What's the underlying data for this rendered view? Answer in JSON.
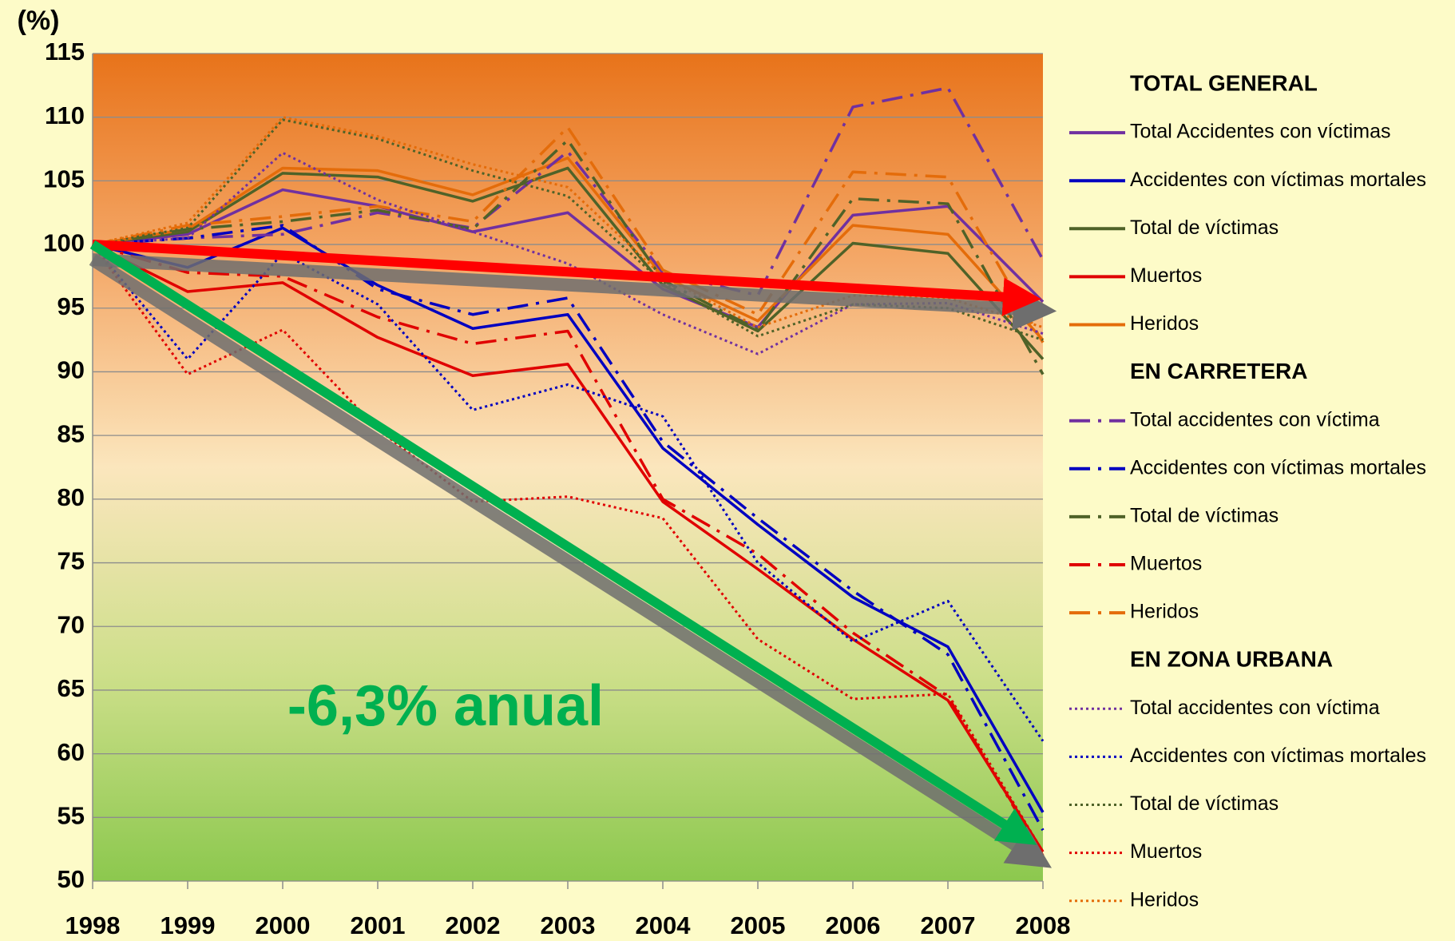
{
  "chart_data": {
    "type": "line",
    "y_label": "(%)",
    "annotation": "-6,3% anual",
    "x": [
      1998,
      1999,
      2000,
      2001,
      2002,
      2003,
      2004,
      2005,
      2006,
      2007,
      2008
    ],
    "xlim": [
      1998,
      2008
    ],
    "xticks": [
      1998,
      1999,
      2000,
      2001,
      2002,
      2003,
      2004,
      2005,
      2006,
      2007,
      2008
    ],
    "ylim": [
      50,
      115
    ],
    "yticks": [
      50,
      55,
      60,
      65,
      70,
      75,
      80,
      85,
      90,
      95,
      100,
      105,
      110,
      115
    ],
    "grid": true,
    "legend": "right",
    "groups": [
      {
        "title": "TOTAL GENERAL",
        "style": "solid",
        "series": [
          {
            "name": "Total Accidentes con víctimas",
            "color": "#7030a0",
            "values": [
              100,
              100.8,
              104.3,
              103,
              101,
              102.5,
              96.5,
              93.5,
              102.3,
              103,
              95.5
            ]
          },
          {
            "name": "Accidentes con víctimas mortales",
            "color": "#0000c0",
            "values": [
              100,
              98.2,
              101.3,
              96.8,
              93.4,
              94.5,
              84,
              78,
              72.3,
              68.4,
              55.4
            ]
          },
          {
            "name": "Total de víctimas",
            "color": "#4f6228",
            "values": [
              100,
              101,
              105.6,
              105.3,
              103.4,
              106,
              96.8,
              93.2,
              100.1,
              99.3,
              91
            ]
          },
          {
            "name": "Muertos",
            "color": "#e00000",
            "values": [
              100,
              96.3,
              97,
              92.7,
              89.7,
              90.6,
              79.8,
              74.5,
              69,
              64.2,
              52.3
            ]
          },
          {
            "name": "Heridos",
            "color": "#e46c0a",
            "values": [
              100,
              101.2,
              106,
              105.8,
              103.9,
              106.8,
              97.5,
              94,
              101.5,
              100.8,
              92.5
            ]
          }
        ]
      },
      {
        "title": "EN CARRETERA",
        "style": "dashdot",
        "series": [
          {
            "name": "Total accidentes con víctima",
            "color": "#7030a0",
            "values": [
              100,
              100.5,
              100.8,
              102.5,
              101.3,
              107.3,
              97.8,
              96,
              110.8,
              112.3,
              98.8
            ]
          },
          {
            "name": "Accidentes con víctimas mortales",
            "color": "#0000c0",
            "values": [
              100,
              100.5,
              101.5,
              96.5,
              94.5,
              95.8,
              84.5,
              78.5,
              72.8,
              67.8,
              54
            ]
          },
          {
            "name": "Total de víctimas",
            "color": "#4f6228",
            "values": [
              100,
              101.2,
              101.8,
              102.7,
              101.2,
              108.2,
              97.2,
              93.3,
              103.6,
              103.2,
              89.8
            ]
          },
          {
            "name": "Muertos",
            "color": "#e00000",
            "values": [
              100,
              97.8,
              97.5,
              94.3,
              92.2,
              93.2,
              80,
              75.7,
              69.5,
              64.5,
              52
            ]
          },
          {
            "name": "Heridos",
            "color": "#e46c0a",
            "values": [
              100,
              101.5,
              102.2,
              103,
              101.8,
              109.2,
              98,
              94.5,
              105.7,
              105.3,
              92.3
            ]
          }
        ]
      },
      {
        "title": "EN ZONA URBANA",
        "style": "dotted",
        "series": [
          {
            "name": "Total accidentes con víctima",
            "color": "#7030a0",
            "values": [
              100,
              100.5,
              107.2,
              103.5,
              101,
              98.5,
              94.5,
              91.4,
              95.3,
              95.4,
              93
            ]
          },
          {
            "name": "Accidentes con víctimas mortales",
            "color": "#0000c0",
            "values": [
              100,
              91,
              99.3,
              95.3,
              87,
              89,
              86.5,
              75,
              68.8,
              72,
              61
            ]
          },
          {
            "name": "Total de víctimas",
            "color": "#4f6228",
            "values": [
              100,
              101.3,
              109.8,
              108.3,
              105.8,
              103.8,
              97,
              92.8,
              95.3,
              95,
              92.5
            ]
          },
          {
            "name": "Muertos",
            "color": "#e00000",
            "values": [
              100,
              89.8,
              93.3,
              85.5,
              79.8,
              80.2,
              78.5,
              69,
              64.3,
              64.7,
              52.3
            ]
          },
          {
            "name": "Heridos",
            "color": "#e46c0a",
            "values": [
              100,
              101.7,
              110,
              108.5,
              106.3,
              104.5,
              97.5,
              93.5,
              96,
              95.8,
              93.5
            ]
          }
        ]
      }
    ]
  }
}
